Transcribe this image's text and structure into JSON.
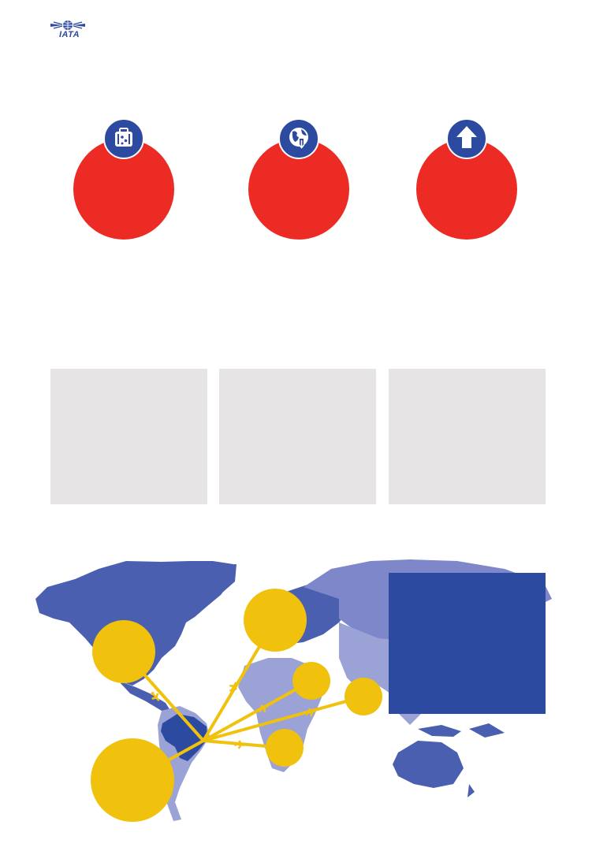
{
  "logo": {
    "text": "IATA"
  },
  "stats": [
    {
      "icon": "luggage-icon"
    },
    {
      "icon": "globe-download-icon"
    },
    {
      "icon": "arrow-up-icon"
    }
  ],
  "colors": {
    "red": "#ed2b25",
    "blue": "#2d4aa1",
    "yellow": "#f0c20e",
    "grey_panel": "#e6e4e5",
    "map_dark": "#4a5fb0",
    "map_light": "#9aa2d6"
  }
}
